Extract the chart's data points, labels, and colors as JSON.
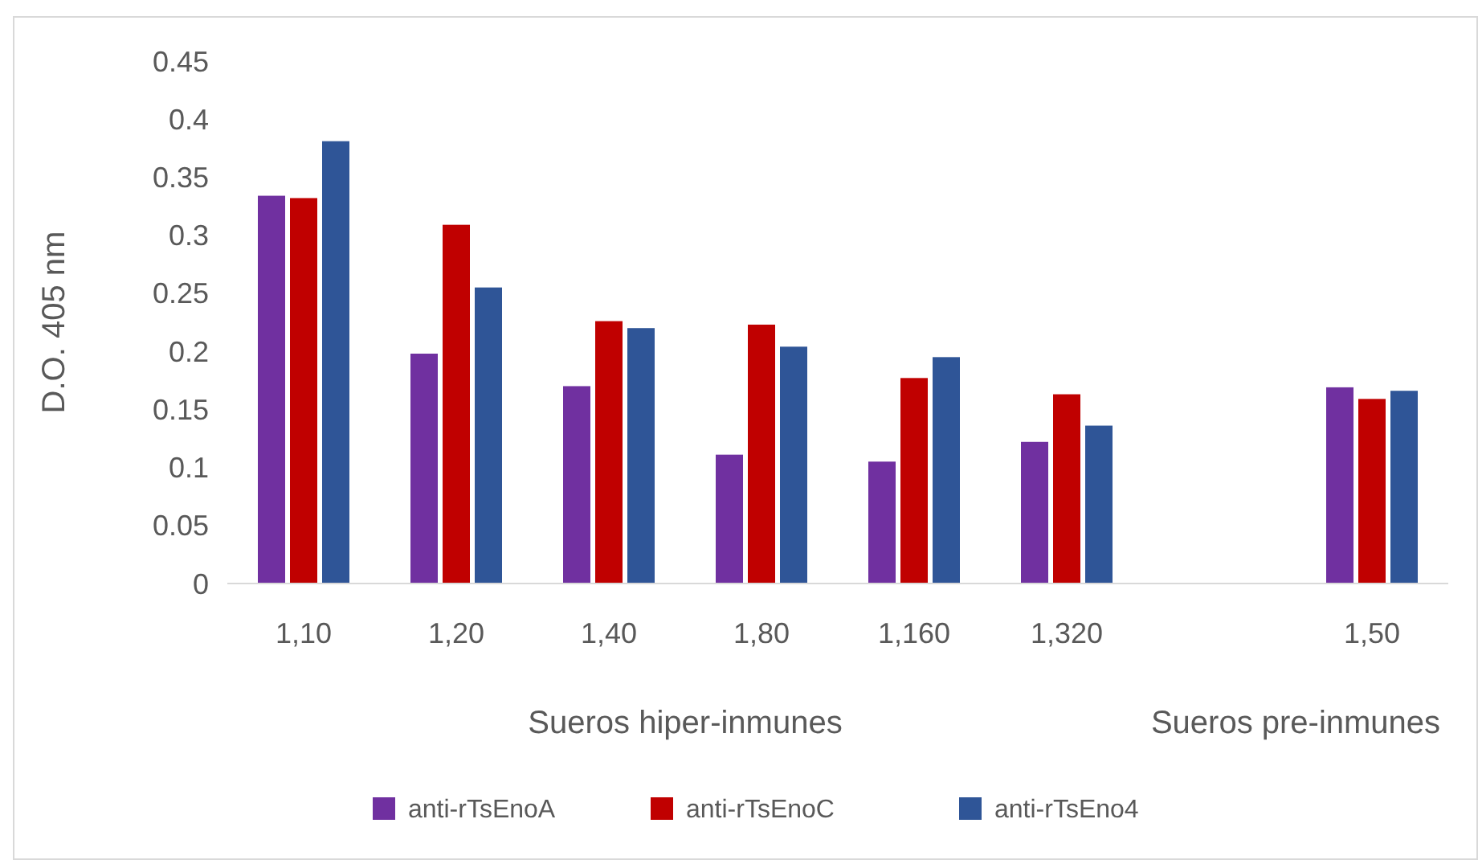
{
  "chart_data": {
    "type": "bar",
    "ylabel": "D.O. 405 nm",
    "categories": [
      "1,10",
      "1,20",
      "1,40",
      "1,80",
      "1,160",
      "1,320",
      null,
      "1,50"
    ],
    "series": [
      {
        "name": "anti-rTsEnoA",
        "color": "#7030a0",
        "values": [
          0.334,
          0.198,
          0.17,
          0.111,
          0.105,
          0.122,
          null,
          0.169
        ]
      },
      {
        "name": "anti-rTsEnoC",
        "color": "#c00000",
        "values": [
          0.332,
          0.309,
          0.226,
          0.223,
          0.177,
          0.163,
          null,
          0.159
        ]
      },
      {
        "name": "anti-rTsEno4",
        "color": "#2f5597",
        "values": [
          0.381,
          0.255,
          0.22,
          0.204,
          0.195,
          0.136,
          null,
          0.166
        ]
      }
    ],
    "ylim": [
      0,
      0.45
    ],
    "yticks": [
      0,
      {
        "value": 0.05,
        "label": "0.05"
      },
      {
        "value": 0.1,
        "label": "0.1"
      },
      {
        "value": 0.15,
        "label": "0.15"
      },
      {
        "value": 0.2,
        "label": "0.2"
      },
      {
        "value": 0.25,
        "label": "0.25"
      },
      {
        "value": 0.3,
        "label": "0.3"
      },
      {
        "value": 0.35,
        "label": "0.35"
      },
      {
        "value": 0.4,
        "label": "0.4"
      },
      {
        "value": 0.45,
        "label": "0.45"
      }
    ],
    "annotations": [
      "Sueros hiper-inmunes",
      "Sueros pre-inmunes"
    ],
    "grid": false,
    "legend": "bottom"
  }
}
